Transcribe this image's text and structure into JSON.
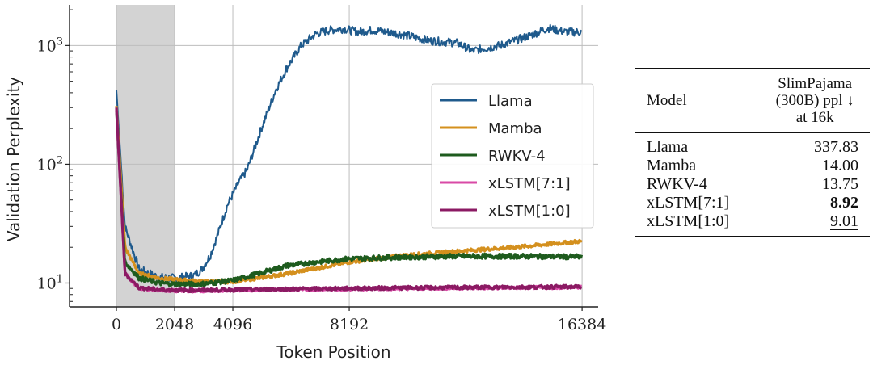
{
  "chart_data": {
    "type": "line",
    "xlabel": "Token Position",
    "ylabel": "Validation Perplexity",
    "yscale": "log",
    "xlim": [
      -1650,
      16950
    ],
    "ylim": [
      6.3,
      2200
    ],
    "xticks": [
      0,
      2048,
      4096,
      8192,
      16384
    ],
    "yticks": [
      {
        "value": 10,
        "base": "10",
        "exp": "1"
      },
      {
        "value": 100,
        "base": "10",
        "exp": "2"
      },
      {
        "value": 1000,
        "base": "10",
        "exp": "3"
      }
    ],
    "shaded_region": [
      0,
      2048
    ],
    "grid": true,
    "legend_position": "center-right",
    "series": [
      {
        "name": "Llama",
        "color": "#1f5a8c",
        "noise": 0.035,
        "points": [
          [
            0,
            420
          ],
          [
            300,
            30
          ],
          [
            800,
            13
          ],
          [
            1500,
            11.2
          ],
          [
            2048,
            11
          ],
          [
            2700,
            11.5
          ],
          [
            3000,
            13
          ],
          [
            3300,
            17
          ],
          [
            3550,
            25
          ],
          [
            3900,
            45
          ],
          [
            4300,
            70
          ],
          [
            4600,
            90
          ],
          [
            5100,
            200
          ],
          [
            5600,
            420
          ],
          [
            6000,
            650
          ],
          [
            6500,
            1000
          ],
          [
            7000,
            1250
          ],
          [
            7500,
            1350
          ],
          [
            8000,
            1380
          ],
          [
            8500,
            1300
          ],
          [
            9000,
            1350
          ],
          [
            10000,
            1250
          ],
          [
            11000,
            1100
          ],
          [
            12000,
            1050
          ],
          [
            12500,
            900
          ],
          [
            13500,
            1000
          ],
          [
            14500,
            1200
          ],
          [
            15200,
            1400
          ],
          [
            15800,
            1300
          ],
          [
            16384,
            1300
          ]
        ]
      },
      {
        "name": "Mamba",
        "color": "#d4901e",
        "noise": 0.015,
        "points": [
          [
            0,
            310
          ],
          [
            300,
            20
          ],
          [
            800,
            12
          ],
          [
            1500,
            11
          ],
          [
            2048,
            10.7
          ],
          [
            3000,
            10.3
          ],
          [
            4096,
            10.3
          ],
          [
            5000,
            11
          ],
          [
            6000,
            12
          ],
          [
            8192,
            15
          ],
          [
            10000,
            17
          ],
          [
            12000,
            18.5
          ],
          [
            14000,
            20
          ],
          [
            16384,
            22.5
          ]
        ]
      },
      {
        "name": "RWKV-4",
        "color": "#1e5b1e",
        "noise": 0.02,
        "points": [
          [
            0,
            280
          ],
          [
            300,
            15
          ],
          [
            800,
            11
          ],
          [
            1500,
            10
          ],
          [
            2048,
            9.8
          ],
          [
            3000,
            9.8
          ],
          [
            4096,
            10.5
          ],
          [
            5000,
            12
          ],
          [
            6000,
            14
          ],
          [
            7000,
            15
          ],
          [
            8192,
            16
          ],
          [
            10000,
            16.5
          ],
          [
            12000,
            16.8
          ],
          [
            14000,
            16.8
          ],
          [
            16384,
            16.6
          ]
        ]
      },
      {
        "name": "xLSTM[7:1]",
        "color": "#d84aa6",
        "noise": 0.012,
        "points": [
          [
            0,
            290
          ],
          [
            300,
            12
          ],
          [
            800,
            9
          ],
          [
            1500,
            8.7
          ],
          [
            2048,
            8.6
          ],
          [
            3000,
            8.6
          ],
          [
            6000,
            8.8
          ],
          [
            10000,
            9
          ],
          [
            16384,
            9.2
          ]
        ]
      },
      {
        "name": "xLSTM[1:0]",
        "color": "#8b1a63",
        "noise": 0.015,
        "points": [
          [
            0,
            300
          ],
          [
            300,
            12
          ],
          [
            800,
            9.1
          ],
          [
            1500,
            8.8
          ],
          [
            2048,
            8.7
          ],
          [
            3000,
            8.7
          ],
          [
            6000,
            8.9
          ],
          [
            10000,
            9.1
          ],
          [
            16384,
            9.3
          ]
        ]
      }
    ]
  },
  "table": {
    "header_model": "Model",
    "header_metric_line1": "SlimPajama",
    "header_metric_line2": "(300B) ppl ↓",
    "header_metric_line3": "at 16k",
    "rows": [
      {
        "model": "Llama",
        "value": "337.83",
        "style": "normal"
      },
      {
        "model": "Mamba",
        "value": "14.00",
        "style": "normal"
      },
      {
        "model": "RWKV-4",
        "value": "13.75",
        "style": "normal"
      },
      {
        "model": "xLSTM[7:1]",
        "value": "8.92",
        "style": "bold"
      },
      {
        "model": "xLSTM[1:0]",
        "value": "9.01",
        "style": "underline"
      }
    ]
  }
}
